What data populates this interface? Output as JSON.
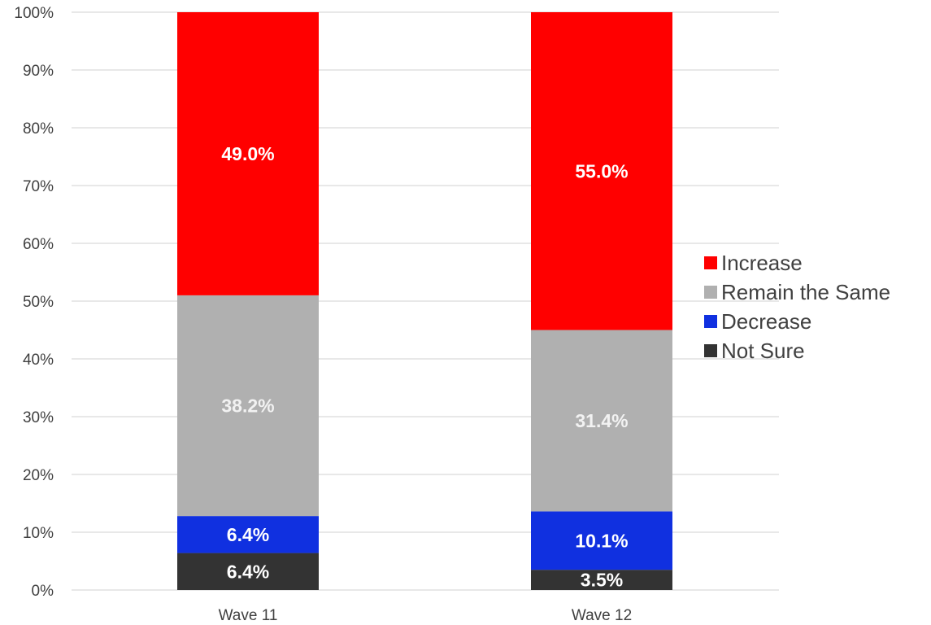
{
  "chart_data": {
    "type": "bar",
    "stacked": true,
    "percent_stacked": true,
    "categories": [
      "Wave 11",
      "Wave 12"
    ],
    "series": [
      {
        "name": "Not Sure",
        "values": [
          6.4,
          3.5
        ],
        "labels": [
          "6.4%",
          "3.5%"
        ],
        "color": "#333333",
        "label_color": "#ffffff"
      },
      {
        "name": "Decrease",
        "values": [
          6.4,
          10.1
        ],
        "labels": [
          "6.4%",
          "10.1%"
        ],
        "color": "#1030e0",
        "label_color": "#ffffff"
      },
      {
        "name": "Remain the Same",
        "values": [
          38.2,
          31.4
        ],
        "labels": [
          "38.2%",
          "31.4%"
        ],
        "color": "#b0b0b0",
        "label_color": "#f2f2f2"
      },
      {
        "name": "Increase",
        "values": [
          49.0,
          55.0
        ],
        "labels": [
          "49.0%",
          "55.0%"
        ],
        "color": "#ff0000",
        "label_color": "#ffffff"
      }
    ],
    "y_ticks": [
      "0%",
      "10%",
      "20%",
      "30%",
      "40%",
      "50%",
      "60%",
      "70%",
      "80%",
      "90%",
      "100%"
    ],
    "ylim": [
      0,
      100
    ],
    "grid": true,
    "legend_position": "right",
    "legend_order": [
      "Increase",
      "Remain the Same",
      "Decrease",
      "Not Sure"
    ]
  }
}
